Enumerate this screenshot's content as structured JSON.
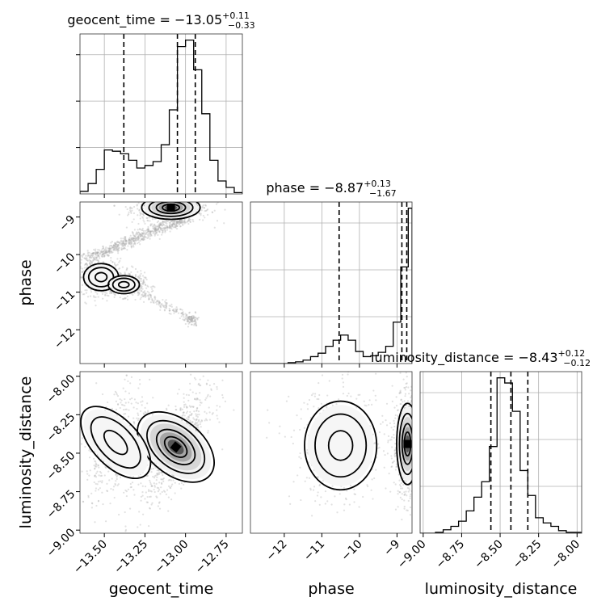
{
  "chart_data": {
    "type": "corner",
    "parameters": [
      "geocent_time",
      "phase",
      "luminosity_distance"
    ],
    "titles": [
      {
        "param": "geocent_time",
        "median": "−13.05",
        "plus": "+0.11",
        "minus": "−0.33"
      },
      {
        "param": "phase",
        "median": "−8.87",
        "plus": "+0.13",
        "minus": "−1.67"
      },
      {
        "param": "luminosity_distance",
        "median": "−8.43",
        "plus": "+0.12",
        "minus": "−0.12"
      }
    ],
    "axes": {
      "geocent_time": {
        "range": [
          -13.65,
          -12.65
        ],
        "ticks": [
          -13.5,
          -13.25,
          -13.0,
          -12.75
        ],
        "tick_labels": [
          "−13.50",
          "−13.25",
          "−13.00",
          "−12.75"
        ],
        "label": "geocent_time"
      },
      "phase": {
        "range": [
          -12.9,
          -8.6
        ],
        "ticks": [
          -12,
          -11,
          -10,
          -9
        ],
        "tick_labels": [
          "−12",
          "−11",
          "−10",
          "−9"
        ],
        "label": "phase"
      },
      "luminosity_distance": {
        "range": [
          -9.02,
          -7.97
        ],
        "ticks": [
          -9.0,
          -8.75,
          -8.5,
          -8.25,
          -8.0
        ],
        "tick_labels": [
          "−9.00",
          "−8.75",
          "−8.50",
          "−8.25",
          "−8.00"
        ],
        "label": "luminosity_distance"
      }
    },
    "marginals": {
      "geocent_time": {
        "bin_edges": [
          -13.65,
          -13.6,
          -13.55,
          -13.5,
          -13.45,
          -13.4,
          -13.35,
          -13.3,
          -13.25,
          -13.2,
          -13.15,
          -13.1,
          -13.05,
          -13.0,
          -12.95,
          -12.9,
          -12.85,
          -12.8,
          -12.75,
          -12.7,
          -12.65
        ],
        "counts": [
          2,
          8,
          19,
          34,
          33,
          31,
          26,
          20,
          22,
          25,
          38,
          65,
          114,
          119,
          96,
          62,
          26,
          10,
          5,
          1
        ],
        "quantiles": [
          -13.38,
          -13.05,
          -12.94
        ]
      },
      "phase": {
        "bin_edges": [
          -12.9,
          -12.7,
          -12.5,
          -12.3,
          -12.1,
          -11.9,
          -11.7,
          -11.5,
          -11.3,
          -11.1,
          -10.9,
          -10.7,
          -10.5,
          -10.3,
          -10.1,
          -9.9,
          -9.7,
          -9.5,
          -9.3,
          -9.1,
          -8.9,
          -8.7,
          -8.6
        ],
        "counts": [
          0,
          0,
          0,
          0,
          0,
          1,
          2,
          4,
          8,
          12,
          20,
          27,
          33,
          27,
          14,
          8,
          9,
          13,
          20,
          48,
          112,
          180
        ],
        "quantiles": [
          -10.54,
          -8.87,
          -8.74
        ]
      },
      "luminosity_distance": {
        "bin_edges": [
          -9.02,
          -8.97,
          -8.92,
          -8.87,
          -8.82,
          -8.77,
          -8.72,
          -8.67,
          -8.62,
          -8.57,
          -8.52,
          -8.47,
          -8.42,
          -8.37,
          -8.32,
          -8.27,
          -8.22,
          -8.17,
          -8.12,
          -8.07,
          -8.02,
          -7.97
        ],
        "counts": [
          0,
          0,
          1,
          4,
          8,
          14,
          26,
          42,
          60,
          101,
          181,
          175,
          142,
          73,
          44,
          18,
          12,
          8,
          3,
          1,
          1
        ],
        "quantiles": [
          -8.56,
          -8.43,
          -8.32
        ]
      }
    },
    "joint": {
      "phase_vs_geocent_time": {
        "modes": [
          {
            "x": -13.09,
            "y": -8.75,
            "sx": 0.075,
            "sy": 0.13,
            "level": 5
          },
          {
            "x": -13.52,
            "y": -10.6,
            "sx": 0.045,
            "sy": 0.15,
            "level": 2
          },
          {
            "x": -13.38,
            "y": -10.8,
            "sx": 0.04,
            "sy": 0.1,
            "level": 2
          }
        ],
        "track": [
          [
            -13.62,
            -10.25
          ],
          [
            -13.35,
            -10.75
          ],
          [
            -13.2,
            -11.2
          ],
          [
            -12.98,
            -11.65
          ],
          [
            -12.95,
            -11.8
          ]
        ],
        "upper_track": [
          [
            -13.6,
            -10.1
          ],
          [
            -13.4,
            -9.75
          ],
          [
            -13.2,
            -9.35
          ],
          [
            -13.0,
            -9.05
          ]
        ]
      },
      "luminosity_distance_vs_geocent_time": {
        "modes": [
          {
            "x": -13.06,
            "y": -8.46,
            "sx": 0.07,
            "sy": 0.12,
            "rho": 0.75,
            "level": 5
          },
          {
            "x": -13.43,
            "y": -8.43,
            "sx": 0.06,
            "sy": 0.12,
            "rho": 0.5,
            "level": 2
          }
        ]
      },
      "luminosity_distance_vs_phase": {
        "modes": [
          {
            "x": -8.72,
            "y": -8.44,
            "sx": 0.12,
            "sy": 0.11,
            "level": 5
          },
          {
            "x": -10.5,
            "y": -8.45,
            "sx": 0.4,
            "sy": 0.12,
            "level": 2
          }
        ]
      }
    },
    "grid": true,
    "line_color": "#000000",
    "sample_color": "#aaaaaa"
  }
}
